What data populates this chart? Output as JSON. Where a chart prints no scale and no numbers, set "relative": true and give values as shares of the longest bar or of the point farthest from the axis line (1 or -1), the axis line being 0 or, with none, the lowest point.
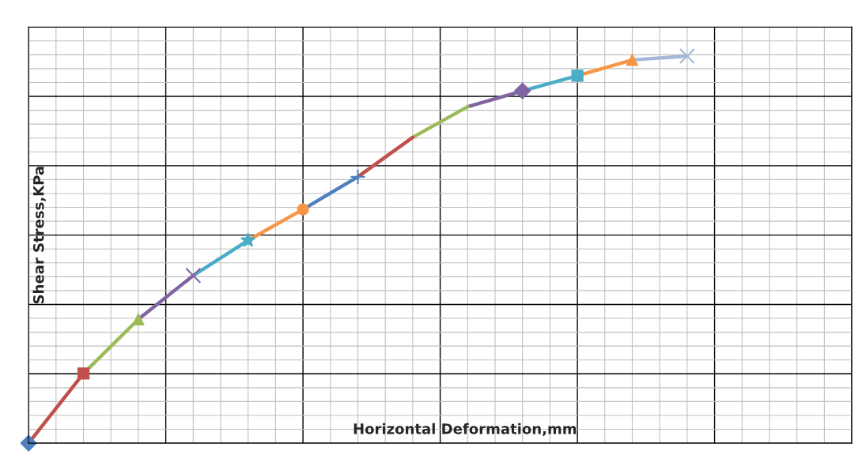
{
  "chart_data": {
    "type": "line",
    "relative": true,
    "xlabel": "Horizontal Deformation,mm",
    "ylabel": "Shear Stress,KPa",
    "grid": true,
    "legend": false,
    "categories": [
      null,
      null,
      null,
      null,
      null,
      null,
      null,
      null,
      null,
      null,
      null,
      null,
      null,
      null,
      null,
      null
    ],
    "series": [
      {
        "color": "#4f81bd",
        "marker": "diamond",
        "values": [
          0,
          null,
          null,
          null,
          null,
          null,
          null,
          null,
          null,
          null,
          null,
          null,
          null,
          null,
          null,
          null
        ]
      },
      {
        "color": "#c0504d",
        "marker": "square",
        "values": [
          0,
          0.18,
          null,
          null,
          null,
          null,
          null,
          null,
          null,
          null,
          null,
          null,
          null,
          null,
          null,
          null
        ]
      },
      {
        "color": "#9bbb59",
        "marker": "triangle",
        "values": [
          null,
          0.18,
          0.32,
          null,
          null,
          null,
          null,
          null,
          null,
          null,
          null,
          null,
          null,
          null,
          null,
          null
        ]
      },
      {
        "color": "#8064a2",
        "marker": "x",
        "values": [
          null,
          null,
          0.32,
          0.433,
          null,
          null,
          null,
          null,
          null,
          null,
          null,
          null,
          null,
          null,
          null,
          null
        ]
      },
      {
        "color": "#4bacc6",
        "marker": "star",
        "values": [
          null,
          null,
          null,
          0.433,
          0.524,
          null,
          null,
          null,
          null,
          null,
          null,
          null,
          null,
          null,
          null,
          null
        ]
      },
      {
        "color": "#f79646",
        "marker": "circle",
        "values": [
          null,
          null,
          null,
          null,
          0.524,
          0.604,
          null,
          null,
          null,
          null,
          null,
          null,
          null,
          null,
          null,
          null
        ]
      },
      {
        "color": "#4f81bd",
        "marker": "plus",
        "values": [
          null,
          null,
          null,
          null,
          null,
          0.604,
          0.688,
          null,
          null,
          null,
          null,
          null,
          null,
          null,
          null,
          null
        ]
      },
      {
        "color": "#c0504d",
        "marker": "none",
        "values": [
          null,
          null,
          null,
          null,
          null,
          null,
          0.688,
          0.79,
          null,
          null,
          null,
          null,
          null,
          null,
          null,
          null
        ]
      },
      {
        "color": "#9bbb59",
        "marker": "none",
        "values": [
          null,
          null,
          null,
          null,
          null,
          null,
          null,
          0.79,
          0.869,
          null,
          null,
          null,
          null,
          null,
          null,
          null
        ]
      },
      {
        "color": "#8064a2",
        "marker": "diamond",
        "values": [
          null,
          null,
          null,
          null,
          null,
          null,
          null,
          null,
          0.869,
          0.91,
          null,
          null,
          null,
          null,
          null,
          null
        ]
      },
      {
        "color": "#4bacc6",
        "marker": "square",
        "values": [
          null,
          null,
          null,
          null,
          null,
          null,
          null,
          null,
          null,
          0.91,
          0.949,
          null,
          null,
          null,
          null,
          null
        ]
      },
      {
        "color": "#f79646",
        "marker": "triangle",
        "values": [
          null,
          null,
          null,
          null,
          null,
          null,
          null,
          null,
          null,
          null,
          0.949,
          0.99,
          null,
          null,
          null,
          null
        ]
      },
      {
        "color": "#a5b8d8",
        "marker": "x",
        "values": [
          null,
          null,
          null,
          null,
          null,
          null,
          null,
          null,
          null,
          null,
          null,
          0.99,
          1,
          null,
          null,
          null
        ]
      }
    ]
  }
}
